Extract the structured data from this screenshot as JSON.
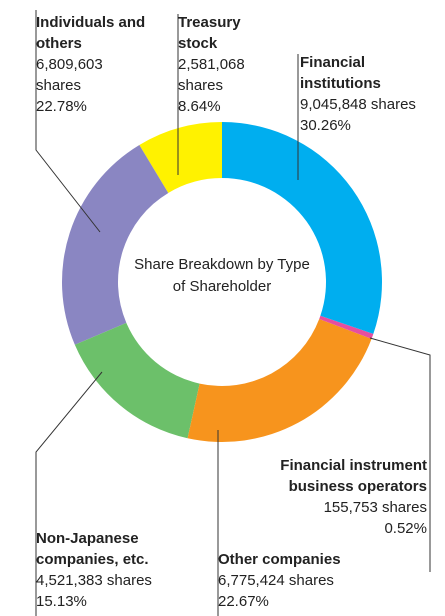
{
  "chart_data": {
    "type": "donut",
    "title": "Share Breakdown by Type of Shareholder",
    "categories": [
      "Financial institutions",
      "Financial instrument business operators",
      "Other companies",
      "Non-Japanese companies, etc.",
      "Individuals and others",
      "Treasury stock"
    ],
    "values": [
      30.26,
      0.52,
      22.67,
      15.13,
      22.78,
      8.64
    ],
    "value_labels": [
      "30.26%",
      "0.52%",
      "22.67%",
      "15.13%",
      "22.78%",
      "8.64%"
    ],
    "share_labels": [
      "9,045,848 shares",
      "155,753 shares",
      "6,775,424 shares",
      "4,521,383 shares",
      "6,809,603 shares",
      "2,581,068 shares"
    ],
    "colors": [
      "#00aeef",
      "#e64ea0",
      "#f7941d",
      "#6cc06a",
      "#8a86c2",
      "#fff200"
    ]
  }
}
